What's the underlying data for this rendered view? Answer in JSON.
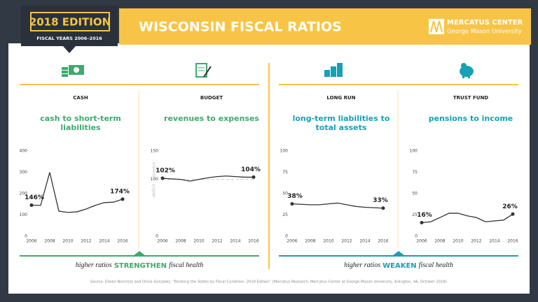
{
  "header": {
    "edition": "2018 EDITION",
    "years": "FISCAL YEARS 2006–2016",
    "title": "WISCONSIN FISCAL RATIOS",
    "logo_name": "MERCATUS CENTER",
    "logo_sub": "George Mason University"
  },
  "footers": [
    {
      "before": "higher ratios",
      "emphasis": "STRENGTHEN",
      "after": "fiscal health",
      "color": "#3dab6b"
    },
    {
      "before": "higher ratios",
      "emphasis": "WEAKEN",
      "after": "fiscal health",
      "color": "#18a0b4"
    }
  ],
  "source": "Source: Eileen Norcross and Olivia Gonzalez, “Ranking the States by Fiscal Condition, 2018 Edition” (Mercatus Research, Mercatus Center at George Mason University, Arlington, VA, October 2018).",
  "chart_data": [
    {
      "type": "line",
      "category": "CASH",
      "title": "cash to short-term liabilities",
      "title_color": "#3dab6b",
      "color": "#333333",
      "x": [
        2006,
        2007,
        2008,
        2009,
        2010,
        2011,
        2012,
        2013,
        2014,
        2015,
        2016
      ],
      "values": [
        146,
        145,
        300,
        118,
        112,
        115,
        128,
        145,
        158,
        160,
        174
      ],
      "value_labels": [
        "146%",
        null,
        null,
        null,
        null,
        null,
        null,
        null,
        null,
        null,
        "174%"
      ],
      "xlim": [
        2006,
        2016
      ],
      "xticks": [
        2006,
        2008,
        2010,
        2012,
        2014,
        2016
      ],
      "ylim": [
        0,
        400
      ],
      "yticks": [
        0,
        100,
        200,
        300,
        400
      ]
    },
    {
      "type": "line",
      "category": "BUDGET",
      "title": "revenues to expenses",
      "title_color": "#3dab6b",
      "color": "#333333",
      "x": [
        2006,
        2007,
        2008,
        2009,
        2010,
        2011,
        2012,
        2013,
        2014,
        2015,
        2016
      ],
      "values": [
        102,
        101,
        100,
        97,
        100,
        103,
        105,
        106,
        105,
        104,
        104
      ],
      "value_labels": [
        "102%",
        null,
        null,
        null,
        null,
        null,
        null,
        null,
        null,
        null,
        "104%"
      ],
      "xlim": [
        2006,
        2016
      ],
      "xticks": [
        2006,
        2008,
        2010,
        2012,
        2014,
        2016
      ],
      "ylim": [
        0,
        150
      ],
      "yticks": [
        0,
        100,
        150
      ],
      "reference_line": 100,
      "zone_labels": {
        "above": "surplus",
        "below": "deficit"
      }
    },
    {
      "type": "line",
      "category": "LONG RUN",
      "title": "long-term liabilities to total assets",
      "title_color": "#18a0b4",
      "color": "#333333",
      "x": [
        2006,
        2007,
        2008,
        2009,
        2010,
        2011,
        2012,
        2013,
        2014,
        2015,
        2016
      ],
      "values": [
        38,
        37.5,
        37,
        37,
        38,
        39,
        37,
        35,
        34,
        33.5,
        33
      ],
      "value_labels": [
        "38%",
        null,
        null,
        null,
        null,
        null,
        null,
        null,
        null,
        null,
        "33%"
      ],
      "xlim": [
        2006,
        2016
      ],
      "xticks": [
        2006,
        2008,
        2010,
        2012,
        2014,
        2016
      ],
      "ylim": [
        0,
        100
      ],
      "yticks": [
        0,
        25,
        50,
        75,
        100
      ]
    },
    {
      "type": "line",
      "category": "TRUST FUND",
      "title": "pensions to income",
      "title_color": "#18a0b4",
      "color": "#333333",
      "x": [
        2006,
        2007,
        2008,
        2009,
        2010,
        2011,
        2012,
        2013,
        2014,
        2015,
        2016
      ],
      "values": [
        16,
        17,
        22,
        27,
        27,
        24,
        22,
        17,
        18,
        19,
        26
      ],
      "value_labels": [
        "16%",
        null,
        null,
        null,
        null,
        null,
        null,
        null,
        null,
        null,
        "26%"
      ],
      "xlim": [
        2006,
        2016
      ],
      "xticks": [
        2006,
        2008,
        2010,
        2012,
        2014,
        2016
      ],
      "ylim": [
        0,
        100
      ],
      "yticks": [
        0,
        25,
        50,
        75,
        100
      ]
    }
  ]
}
